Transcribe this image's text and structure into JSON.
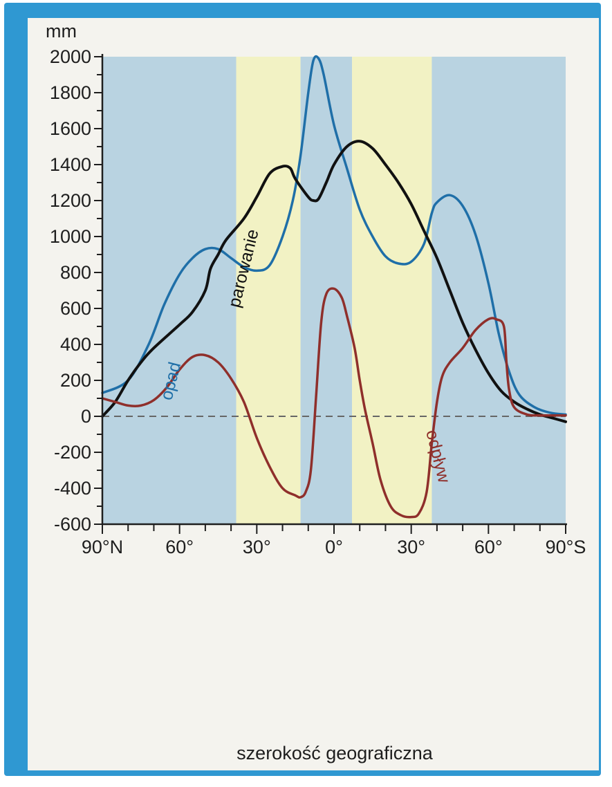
{
  "chart_data": {
    "type": "line",
    "title": "",
    "ylabel": "mm",
    "xlabel": "szerokość geograficzna",
    "ylim": [
      -600,
      2000
    ],
    "yticks": [
      2000,
      1800,
      1600,
      1400,
      1200,
      1000,
      800,
      600,
      400,
      200,
      0,
      -200,
      -400,
      -600
    ],
    "x_tick_labels": [
      "90°N",
      "60°",
      "30°",
      "0°",
      "30°",
      "60°",
      "90°S"
    ],
    "x_tick_values": [
      90,
      60,
      30,
      0,
      -30,
      -60,
      -90
    ],
    "xlim": [
      90,
      -90
    ],
    "bands": [
      {
        "from": 90,
        "to": 38,
        "color": "#b9d3e1"
      },
      {
        "from": 38,
        "to": 13,
        "color": "#f2f2c4"
      },
      {
        "from": 13,
        "to": -7,
        "color": "#b9d3e1"
      },
      {
        "from": -7,
        "to": -38,
        "color": "#f2f2c4"
      },
      {
        "from": -38,
        "to": -90,
        "color": "#b9d3e1"
      }
    ],
    "series": [
      {
        "name": "opad",
        "color": "#1f6fa8",
        "points": [
          [
            90,
            130
          ],
          [
            80,
            200
          ],
          [
            72,
            400
          ],
          [
            66,
            620
          ],
          [
            60,
            790
          ],
          [
            55,
            880
          ],
          [
            50,
            930
          ],
          [
            45,
            930
          ],
          [
            40,
            880
          ],
          [
            35,
            830
          ],
          [
            30,
            810
          ],
          [
            25,
            840
          ],
          [
            20,
            1000
          ],
          [
            16,
            1200
          ],
          [
            13,
            1450
          ],
          [
            10,
            1800
          ],
          [
            8,
            1980
          ],
          [
            6,
            1990
          ],
          [
            4,
            1900
          ],
          [
            0,
            1620
          ],
          [
            -5,
            1380
          ],
          [
            -10,
            1150
          ],
          [
            -15,
            1000
          ],
          [
            -20,
            890
          ],
          [
            -25,
            850
          ],
          [
            -30,
            860
          ],
          [
            -35,
            960
          ],
          [
            -38,
            1130
          ],
          [
            -40,
            1190
          ],
          [
            -45,
            1230
          ],
          [
            -50,
            1170
          ],
          [
            -55,
            1010
          ],
          [
            -60,
            740
          ],
          [
            -64,
            460
          ],
          [
            -68,
            250
          ],
          [
            -72,
            120
          ],
          [
            -78,
            50
          ],
          [
            -84,
            20
          ],
          [
            -90,
            10
          ]
        ]
      },
      {
        "name": "parowanie",
        "color": "#111111",
        "points": [
          [
            90,
            0
          ],
          [
            85,
            80
          ],
          [
            80,
            200
          ],
          [
            75,
            300
          ],
          [
            70,
            380
          ],
          [
            60,
            510
          ],
          [
            55,
            580
          ],
          [
            50,
            700
          ],
          [
            48,
            820
          ],
          [
            45,
            900
          ],
          [
            42,
            980
          ],
          [
            35,
            1100
          ],
          [
            30,
            1220
          ],
          [
            25,
            1350
          ],
          [
            20,
            1390
          ],
          [
            17,
            1380
          ],
          [
            15,
            1320
          ],
          [
            10,
            1220
          ],
          [
            8,
            1200
          ],
          [
            6,
            1210
          ],
          [
            3,
            1300
          ],
          [
            0,
            1400
          ],
          [
            -5,
            1500
          ],
          [
            -10,
            1530
          ],
          [
            -15,
            1490
          ],
          [
            -20,
            1400
          ],
          [
            -25,
            1300
          ],
          [
            -30,
            1180
          ],
          [
            -35,
            1030
          ],
          [
            -40,
            880
          ],
          [
            -45,
            700
          ],
          [
            -50,
            520
          ],
          [
            -55,
            370
          ],
          [
            -60,
            240
          ],
          [
            -65,
            140
          ],
          [
            -70,
            80
          ],
          [
            -75,
            40
          ],
          [
            -80,
            10
          ],
          [
            -85,
            -10
          ],
          [
            -90,
            -30
          ]
        ]
      },
      {
        "name": "odpływ",
        "color": "#8f2f2b",
        "points": [
          [
            90,
            100
          ],
          [
            85,
            80
          ],
          [
            80,
            60
          ],
          [
            75,
            60
          ],
          [
            70,
            90
          ],
          [
            65,
            160
          ],
          [
            60,
            260
          ],
          [
            55,
            330
          ],
          [
            50,
            340
          ],
          [
            45,
            300
          ],
          [
            40,
            210
          ],
          [
            35,
            80
          ],
          [
            30,
            -120
          ],
          [
            25,
            -280
          ],
          [
            20,
            -400
          ],
          [
            15,
            -440
          ],
          [
            13,
            -450
          ],
          [
            11,
            -420
          ],
          [
            9,
            -300
          ],
          [
            7,
            100
          ],
          [
            5,
            520
          ],
          [
            3,
            680
          ],
          [
            0,
            710
          ],
          [
            -3,
            660
          ],
          [
            -5,
            560
          ],
          [
            -8,
            380
          ],
          [
            -10,
            200
          ],
          [
            -12,
            40
          ],
          [
            -15,
            -150
          ],
          [
            -18,
            -350
          ],
          [
            -22,
            -500
          ],
          [
            -26,
            -550
          ],
          [
            -30,
            -560
          ],
          [
            -33,
            -540
          ],
          [
            -36,
            -420
          ],
          [
            -38,
            -150
          ],
          [
            -40,
            80
          ],
          [
            -42,
            220
          ],
          [
            -45,
            300
          ],
          [
            -50,
            380
          ],
          [
            -55,
            480
          ],
          [
            -60,
            540
          ],
          [
            -63,
            540
          ],
          [
            -66,
            500
          ],
          [
            -67,
            300
          ],
          [
            -68,
            150
          ],
          [
            -70,
            50
          ],
          [
            -75,
            10
          ],
          [
            -80,
            5
          ],
          [
            -90,
            5
          ]
        ]
      }
    ]
  }
}
